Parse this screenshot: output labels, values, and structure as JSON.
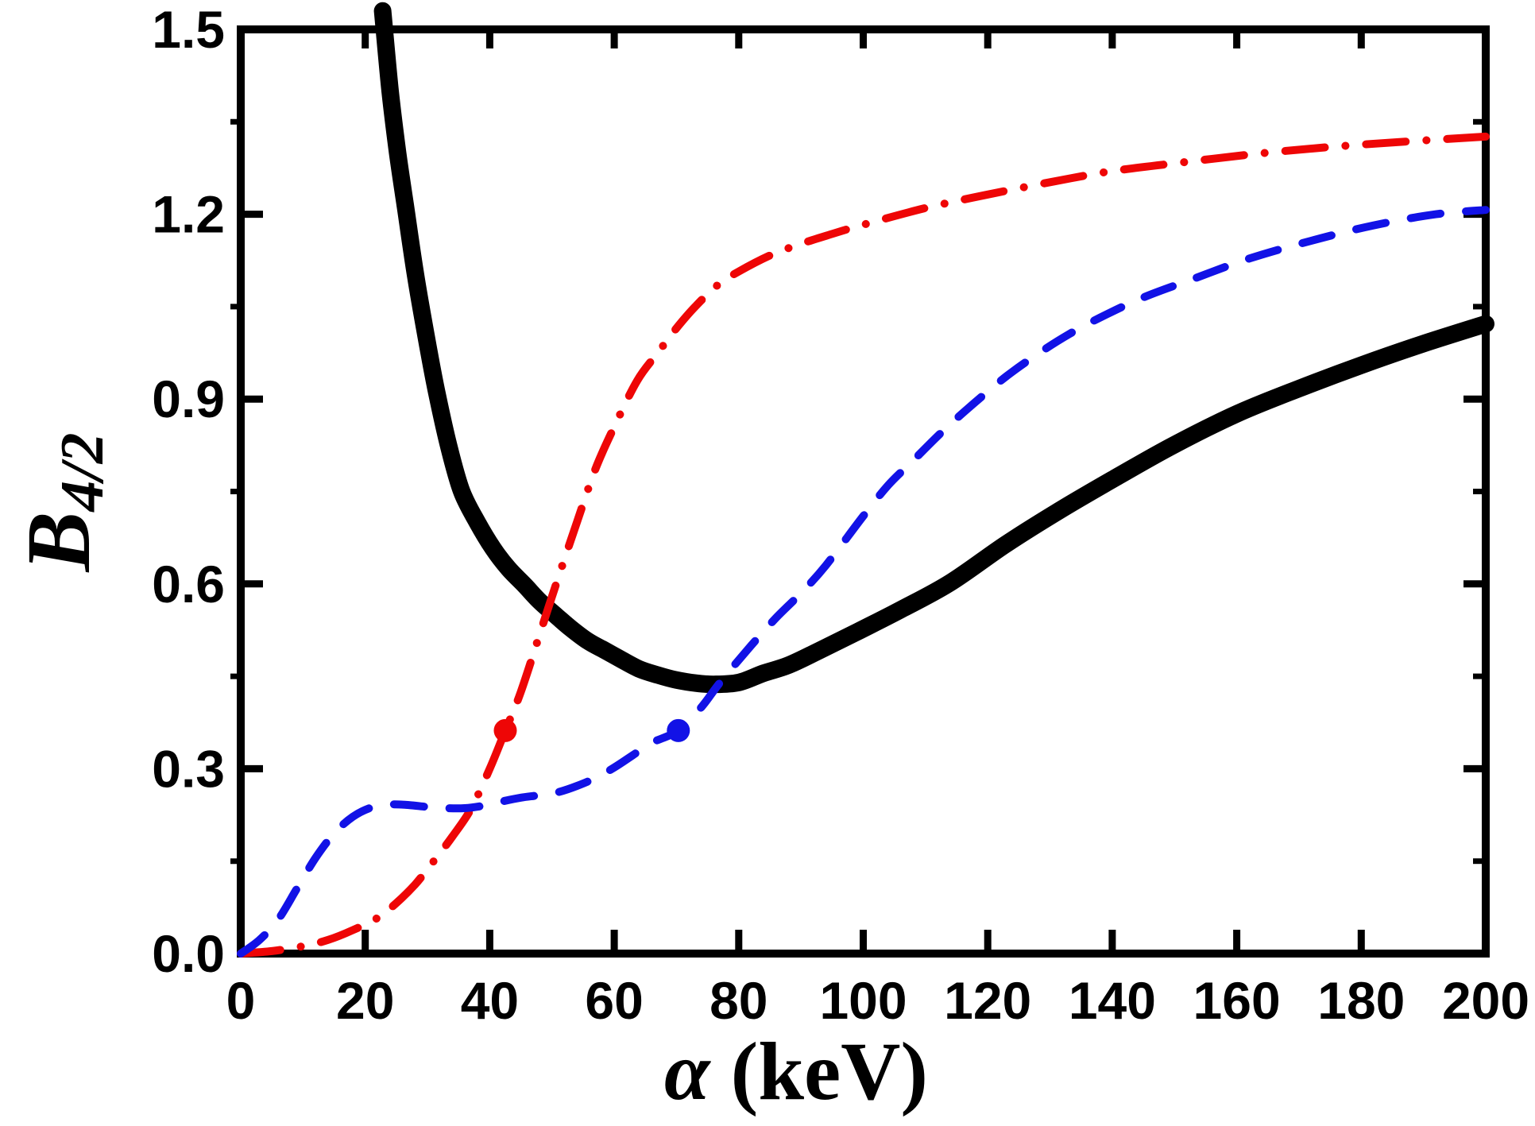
{
  "figure": {
    "background": "#ffffff",
    "axis_color": "#000000"
  },
  "chart_data": {
    "type": "line",
    "title": "",
    "xlabel": {
      "symbol": "α",
      "unit": " (keV)"
    },
    "ylabel": {
      "base": "B",
      "sub": "4/2"
    },
    "xlim": [
      0,
      200
    ],
    "ylim": [
      0,
      1.5
    ],
    "grid": false,
    "legend": "none",
    "x_major_ticks": [
      {
        "value": 0,
        "label": "0"
      },
      {
        "value": 20,
        "label": "20"
      },
      {
        "value": 40,
        "label": "40"
      },
      {
        "value": 60,
        "label": "60"
      },
      {
        "value": 80,
        "label": "80"
      },
      {
        "value": 100,
        "label": "100"
      },
      {
        "value": 120,
        "label": "120"
      },
      {
        "value": 140,
        "label": "140"
      },
      {
        "value": 160,
        "label": "160"
      },
      {
        "value": 180,
        "label": "180"
      },
      {
        "value": 200,
        "label": "200"
      }
    ],
    "top_ticks": [
      20,
      40,
      60,
      80,
      100,
      120,
      140,
      160,
      180
    ],
    "y_major_ticks": [
      {
        "value": 0.0,
        "label": "0.0"
      },
      {
        "value": 0.3,
        "label": "0.3"
      },
      {
        "value": 0.6,
        "label": "0.6"
      },
      {
        "value": 0.9,
        "label": "0.9"
      },
      {
        "value": 1.2,
        "label": "1.2"
      },
      {
        "value": 1.5,
        "label": "1.5"
      }
    ],
    "y_minor_ticks": [
      0.15,
      0.45,
      0.75,
      1.05,
      1.35
    ],
    "series": [
      {
        "name": "thick-solid-black-curve",
        "color": "#000000",
        "width": 22,
        "dash": null,
        "x": [
          22.8,
          24,
          25.2,
          26.5,
          28.1,
          30,
          31.5,
          33.5,
          35.5,
          38,
          40.5,
          43,
          45.6,
          48,
          50.7,
          53,
          55.8,
          58.5,
          61,
          64,
          67,
          70,
          73,
          76,
          80,
          84,
          88,
          93,
          99,
          106,
          114,
          123,
          132,
          141,
          150,
          160,
          170,
          180,
          190,
          200
        ],
        "y": [
          1.53,
          1.4,
          1.3,
          1.21,
          1.1,
          0.99,
          0.91,
          0.82,
          0.75,
          0.7,
          0.658,
          0.625,
          0.598,
          0.572,
          0.548,
          0.528,
          0.507,
          0.492,
          0.478,
          0.462,
          0.452,
          0.444,
          0.439,
          0.437,
          0.44,
          0.455,
          0.468,
          0.492,
          0.522,
          0.558,
          0.602,
          0.665,
          0.722,
          0.775,
          0.826,
          0.876,
          0.917,
          0.955,
          0.99,
          1.022
        ]
      },
      {
        "name": "red-dash-dot-curve",
        "color": "#ee0606",
        "width": 10,
        "dash": [
          50,
          26,
          0.1,
          26
        ],
        "x": [
          0,
          5,
          10,
          14,
          18,
          22,
          25,
          28,
          31,
          34,
          37,
          40,
          42.5,
          45,
          48.4,
          51,
          54,
          57,
          60,
          63.7,
          67,
          70,
          73,
          76.6,
          80,
          85,
          90,
          95,
          100,
          110,
          120,
          130,
          140,
          152,
          165,
          180,
          200
        ],
        "y": [
          0,
          0.004,
          0.012,
          0.022,
          0.038,
          0.058,
          0.082,
          0.112,
          0.15,
          0.19,
          0.235,
          0.3,
          0.362,
          0.425,
          0.53,
          0.61,
          0.7,
          0.787,
          0.855,
          0.93,
          0.975,
          1.015,
          1.05,
          1.085,
          1.107,
          1.133,
          1.152,
          1.168,
          1.183,
          1.21,
          1.232,
          1.252,
          1.27,
          1.285,
          1.3,
          1.313,
          1.326
        ]
      },
      {
        "name": "blue-dashed-curve",
        "color": "#1212e6",
        "width": 10,
        "dash": [
          38,
          32
        ],
        "x": [
          0,
          3,
          6,
          9,
          12,
          15,
          18,
          21,
          24,
          27,
          30,
          33,
          36,
          39,
          42,
          45,
          48,
          51,
          54,
          57,
          60,
          63,
          66,
          70.3,
          74,
          77,
          82,
          86,
          90,
          94,
          100,
          104,
          108,
          113,
          118,
          123,
          128,
          133,
          138,
          145,
          153,
          162,
          172,
          182,
          192,
          200
        ],
        "y": [
          0,
          0.022,
          0.055,
          0.105,
          0.155,
          0.195,
          0.222,
          0.237,
          0.242,
          0.241,
          0.238,
          0.236,
          0.236,
          0.24,
          0.247,
          0.253,
          0.257,
          0.262,
          0.272,
          0.285,
          0.302,
          0.322,
          0.342,
          0.362,
          0.4,
          0.44,
          0.5,
          0.545,
          0.585,
          0.63,
          0.71,
          0.76,
          0.8,
          0.85,
          0.895,
          0.937,
          0.973,
          1.005,
          1.032,
          1.065,
          1.095,
          1.128,
          1.157,
          1.182,
          1.2,
          1.207
        ]
      }
    ],
    "markers": [
      {
        "name": "red-point-marker",
        "x": 42.5,
        "y": 0.362,
        "r": 14.5,
        "color": "#ee0606"
      },
      {
        "name": "blue-point-marker",
        "x": 70.3,
        "y": 0.362,
        "r": 14.5,
        "color": "#1212e6"
      }
    ]
  }
}
